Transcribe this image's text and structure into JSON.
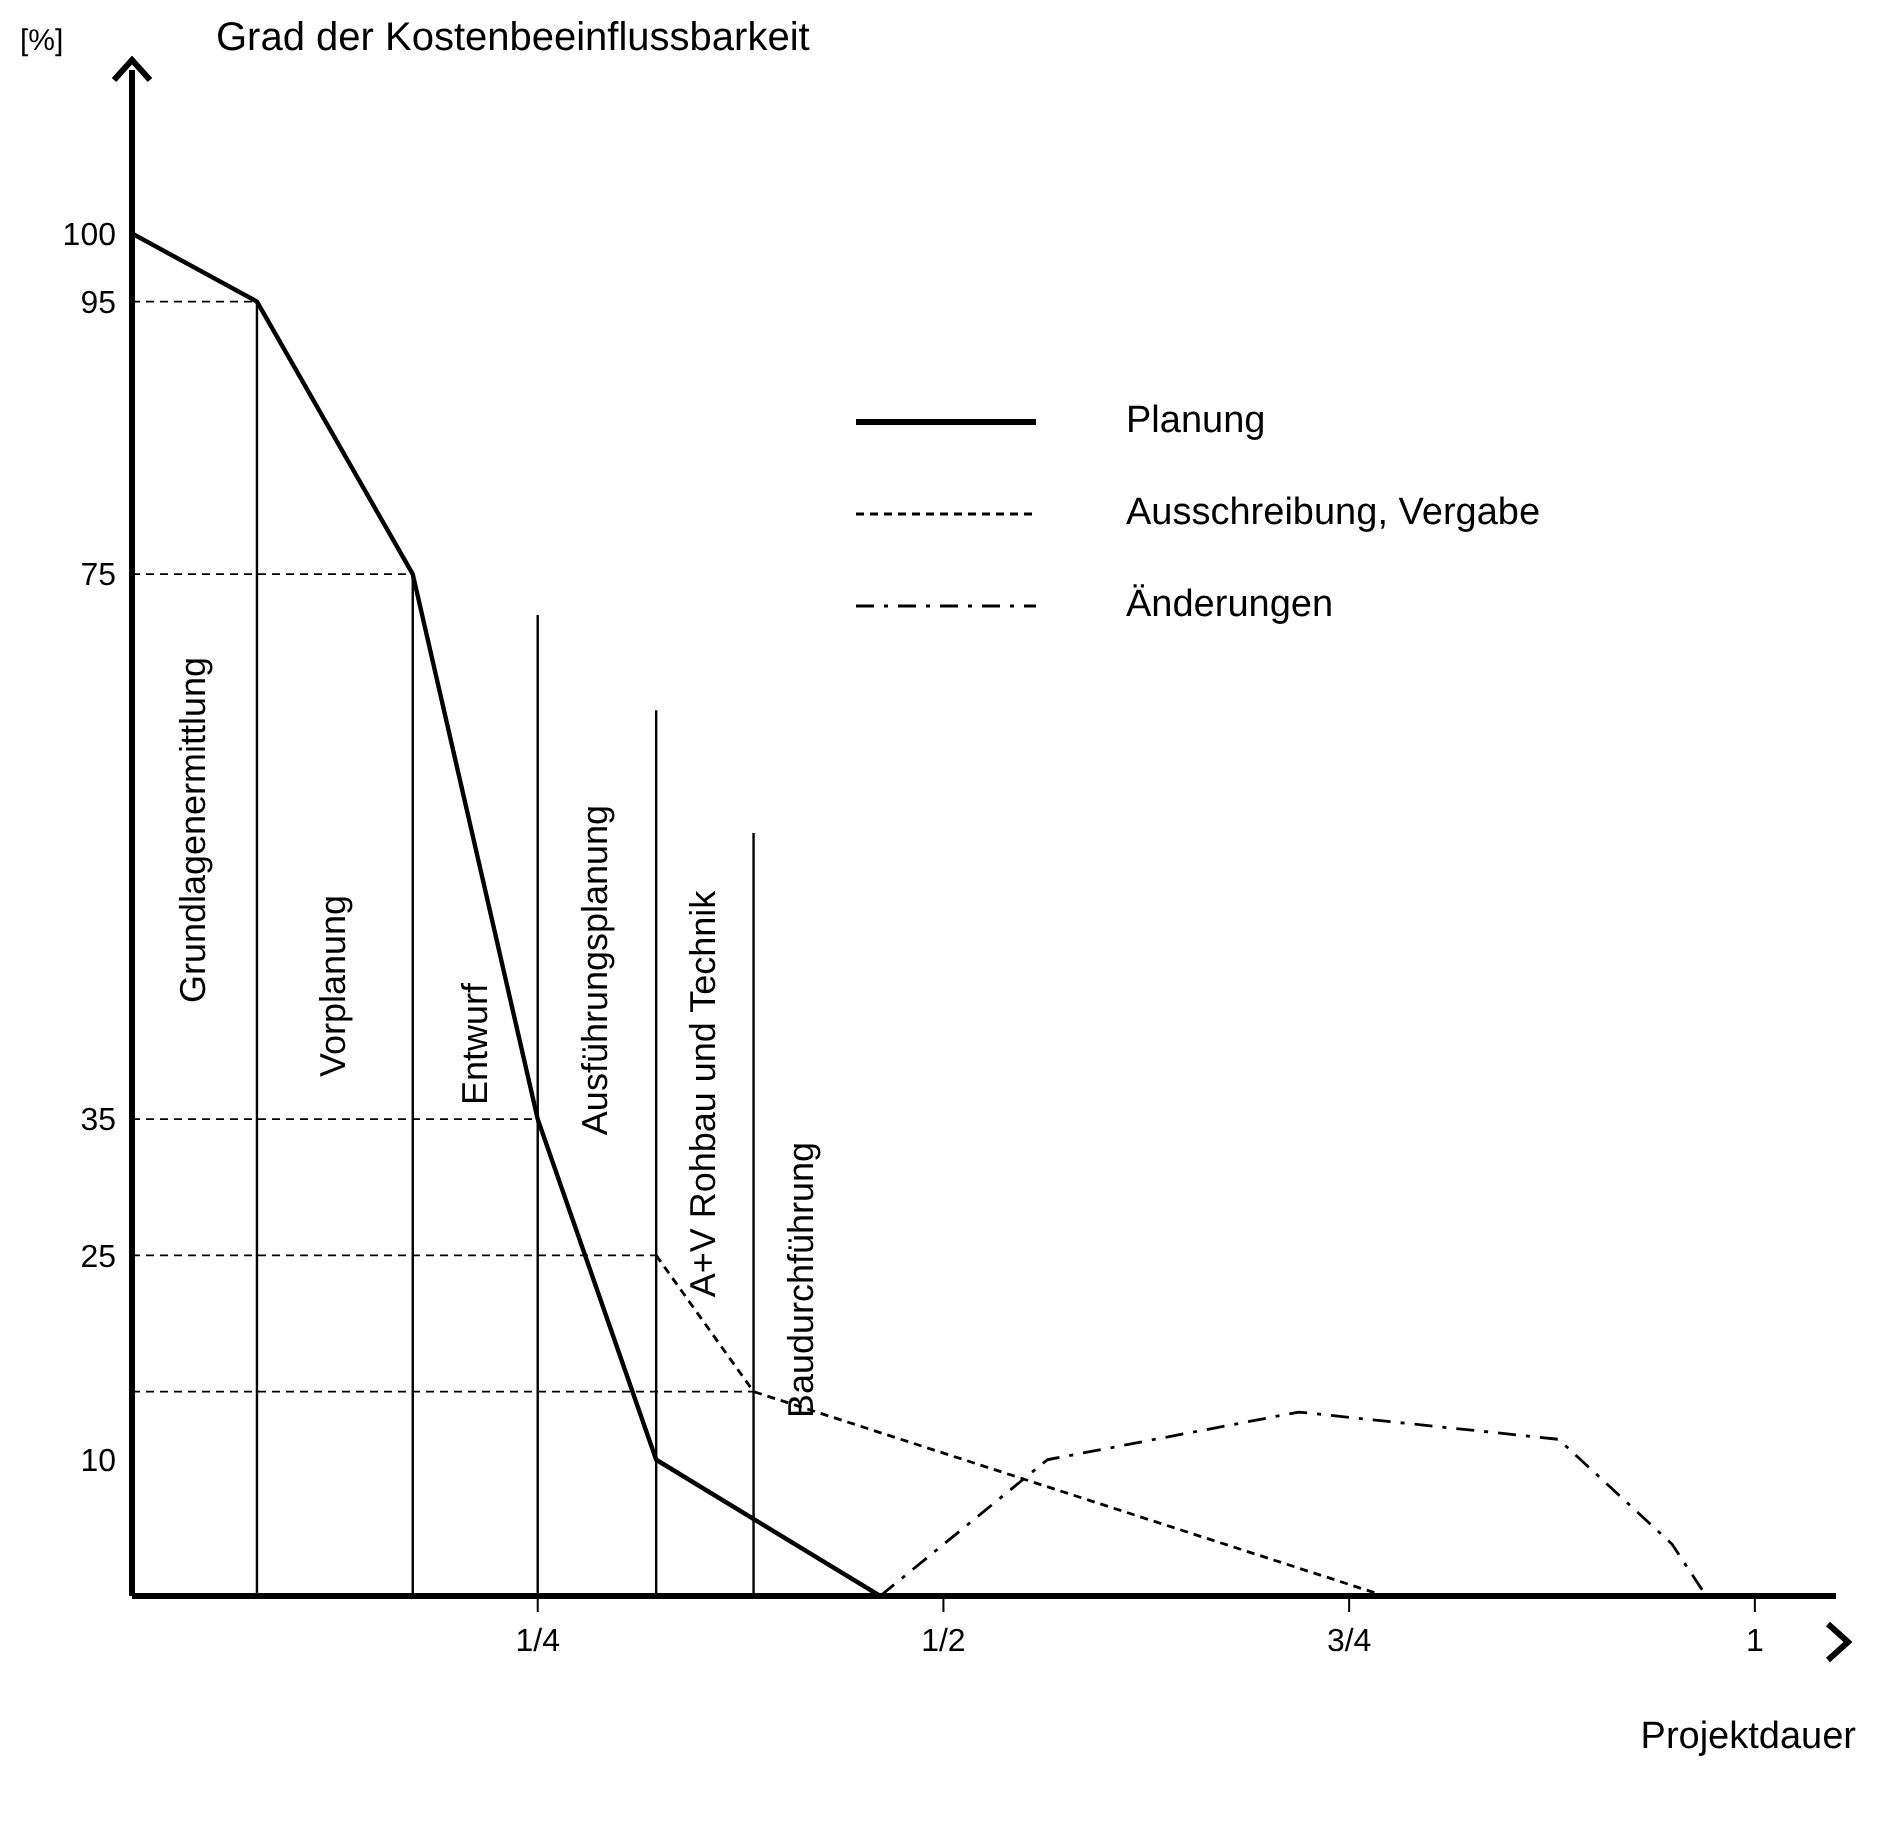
{
  "chart_data": {
    "type": "line",
    "title": "Grad der Kostenbeeinflussbarkeit",
    "ylabel": "[%]",
    "xlabel": "Projektdauer",
    "xlim": [
      0,
      1.05
    ],
    "xticks": [
      {
        "value": 0.25,
        "label": "1/4"
      },
      {
        "value": 0.5,
        "label": "1/2"
      },
      {
        "value": 0.75,
        "label": "3/4"
      },
      1
    ],
    "ylim": [
      0,
      112
    ],
    "yticks": [
      10,
      25,
      35,
      75,
      95,
      100
    ],
    "grid": false,
    "legend": "top right",
    "marker": "none",
    "series": [
      {
        "name": "Planung",
        "color": "#000000",
        "line_style": "solid",
        "x": [
          0,
          0.077,
          0.173,
          0.25,
          0.323,
          0.461
        ],
        "values": [
          100,
          95,
          75,
          35,
          10,
          0
        ]
      },
      {
        "name": "Ausschreibung, Vergabe",
        "color": "#000000",
        "line_style": "dashed",
        "x": [
          0.323,
          0.383,
          0.772
        ],
        "values": [
          25,
          15,
          0
        ]
      },
      {
        "name": "Änderungen",
        "color": "#000000",
        "line_style": "dashdot",
        "x": [
          0.461,
          0.564,
          0.719,
          0.879,
          0.949,
          0.97
        ],
        "values": [
          0,
          10,
          13.5,
          11.5,
          3.8,
          0
        ]
      },
      {
        "color": "#000000",
        "line_style": "solid",
        "x": [
          0.077,
          0.077
        ],
        "values": [
          0,
          95
        ]
      },
      {
        "color": "#000000",
        "line_style": "solid",
        "x": [
          0.173,
          0.173
        ],
        "values": [
          0,
          75
        ]
      },
      {
        "color": "#000000",
        "line_style": "solid",
        "x": [
          0.25,
          0.25
        ],
        "values": [
          0,
          72
        ]
      },
      {
        "color": "#000000",
        "line_style": "solid",
        "x": [
          0.323,
          0.323
        ],
        "values": [
          0,
          65
        ]
      },
      {
        "color": "#000000",
        "line_style": "solid",
        "x": [
          0.383,
          0.383
        ],
        "values": [
          0,
          56
        ]
      },
      {
        "color": "#000000",
        "line_style": "dashed",
        "x": [
          0,
          0.077
        ],
        "values": [
          95,
          95
        ]
      },
      {
        "color": "#000000",
        "line_style": "dashed",
        "x": [
          0,
          0.173
        ],
        "values": [
          75,
          75
        ]
      },
      {
        "color": "#000000",
        "line_style": "dashed",
        "x": [
          0,
          0.25
        ],
        "values": [
          35,
          35
        ]
      },
      {
        "color": "#000000",
        "line_style": "dashed",
        "x": [
          0,
          0.323
        ],
        "values": [
          25,
          25
        ]
      },
      {
        "color": "#000000",
        "line_style": "dashed",
        "x": [
          0,
          0.383
        ],
        "values": [
          15,
          15
        ]
      }
    ],
    "annotations": [
      "Grundlagenermittlung",
      "Vorplanung",
      "Entwurf",
      "Ausführungsplanung",
      "A+V Rohbau und Technik",
      "Baudurchführung"
    ]
  }
}
